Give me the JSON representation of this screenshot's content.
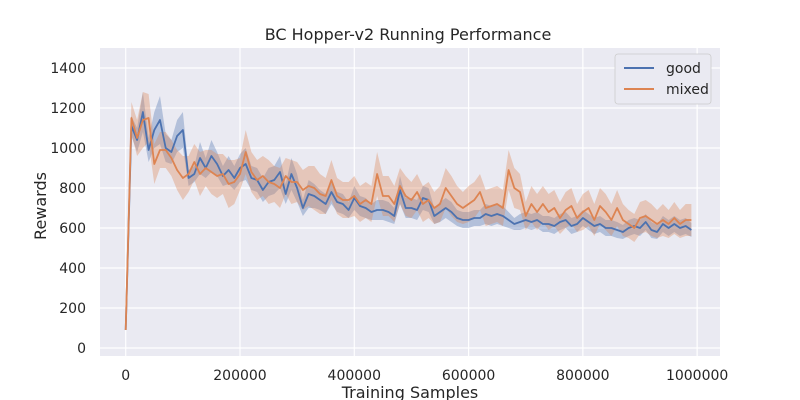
{
  "chart_data": {
    "type": "line",
    "title": "BC Hopper-v2 Running Performance",
    "xlabel": "Training Samples",
    "ylabel": "Rewards",
    "xlim": [
      -45000,
      1040000
    ],
    "ylim": [
      -40,
      1500
    ],
    "xticks": [
      0,
      200000,
      400000,
      600000,
      800000,
      1000000
    ],
    "yticks": [
      0,
      200,
      400,
      600,
      800,
      1000,
      1200,
      1400
    ],
    "grid": true,
    "legend_position": "top-right",
    "background_color": "#eaeaf2",
    "series": [
      {
        "name": "good",
        "color": "#4c72b0",
        "x": [
          0,
          10000,
          20000,
          30000,
          40000,
          50000,
          60000,
          70000,
          80000,
          90000,
          100000,
          110000,
          120000,
          130000,
          140000,
          150000,
          160000,
          170000,
          180000,
          190000,
          200000,
          210000,
          220000,
          230000,
          240000,
          250000,
          260000,
          270000,
          280000,
          290000,
          300000,
          310000,
          320000,
          330000,
          340000,
          350000,
          360000,
          370000,
          380000,
          390000,
          400000,
          410000,
          420000,
          430000,
          440000,
          450000,
          460000,
          470000,
          480000,
          490000,
          500000,
          510000,
          520000,
          530000,
          540000,
          550000,
          560000,
          570000,
          580000,
          590000,
          600000,
          610000,
          620000,
          630000,
          640000,
          650000,
          660000,
          670000,
          680000,
          690000,
          700000,
          710000,
          720000,
          730000,
          740000,
          750000,
          760000,
          770000,
          780000,
          790000,
          800000,
          810000,
          820000,
          830000,
          840000,
          850000,
          860000,
          870000,
          880000,
          890000,
          900000,
          910000,
          920000,
          930000,
          940000,
          950000,
          960000,
          970000,
          980000,
          990000
        ],
        "y": [
          90,
          1110,
          1040,
          1180,
          990,
          1090,
          1140,
          1000,
          980,
          1060,
          1090,
          850,
          870,
          950,
          900,
          960,
          920,
          860,
          890,
          850,
          900,
          920,
          850,
          840,
          790,
          830,
          840,
          880,
          770,
          870,
          800,
          700,
          770,
          760,
          740,
          720,
          780,
          730,
          720,
          690,
          750,
          710,
          700,
          680,
          690,
          690,
          680,
          660,
          790,
          700,
          700,
          690,
          750,
          740,
          660,
          680,
          700,
          680,
          650,
          640,
          640,
          650,
          650,
          670,
          660,
          670,
          660,
          640,
          620,
          630,
          640,
          630,
          640,
          620,
          620,
          610,
          630,
          640,
          610,
          620,
          650,
          630,
          610,
          620,
          600,
          600,
          590,
          580,
          600,
          610,
          600,
          630,
          590,
          580,
          620,
          600,
          620,
          600,
          610,
          590
        ],
        "lower": [
          90,
          1060,
          980,
          1080,
          930,
          1000,
          1020,
          930,
          920,
          980,
          1000,
          810,
          830,
          870,
          850,
          880,
          860,
          810,
          820,
          790,
          830,
          840,
          790,
          780,
          730,
          760,
          770,
          800,
          720,
          790,
          730,
          660,
          700,
          700,
          690,
          670,
          720,
          680,
          670,
          650,
          690,
          660,
          650,
          640,
          640,
          640,
          630,
          620,
          720,
          650,
          650,
          640,
          690,
          680,
          620,
          630,
          650,
          630,
          610,
          600,
          600,
          610,
          610,
          620,
          610,
          620,
          610,
          600,
          590,
          590,
          600,
          590,
          600,
          580,
          580,
          570,
          590,
          600,
          570,
          580,
          610,
          590,
          570,
          580,
          560,
          560,
          550,
          545,
          560,
          570,
          560,
          590,
          550,
          545,
          580,
          560,
          580,
          560,
          570,
          555
        ],
        "upper": [
          90,
          1160,
          1100,
          1280,
          1050,
          1180,
          1260,
          1070,
          1040,
          1140,
          1180,
          890,
          910,
          1030,
          950,
          1040,
          980,
          910,
          960,
          910,
          970,
          1000,
          910,
          900,
          850,
          900,
          910,
          960,
          820,
          950,
          870,
          740,
          840,
          820,
          790,
          770,
          840,
          780,
          770,
          730,
          810,
          760,
          750,
          720,
          740,
          740,
          730,
          700,
          860,
          750,
          750,
          740,
          810,
          800,
          700,
          730,
          750,
          730,
          690,
          680,
          680,
          690,
          690,
          720,
          710,
          720,
          710,
          680,
          650,
          670,
          680,
          670,
          680,
          660,
          660,
          650,
          670,
          680,
          650,
          660,
          690,
          670,
          650,
          660,
          640,
          640,
          630,
          615,
          640,
          650,
          640,
          670,
          630,
          615,
          660,
          640,
          660,
          640,
          650,
          625
        ]
      },
      {
        "name": "mixed",
        "color": "#dd8452",
        "x": [
          0,
          10000,
          20000,
          30000,
          40000,
          50000,
          60000,
          70000,
          80000,
          90000,
          100000,
          110000,
          120000,
          130000,
          140000,
          150000,
          160000,
          170000,
          180000,
          190000,
          200000,
          210000,
          220000,
          230000,
          240000,
          250000,
          260000,
          270000,
          280000,
          290000,
          300000,
          310000,
          320000,
          330000,
          340000,
          350000,
          360000,
          370000,
          380000,
          390000,
          400000,
          410000,
          420000,
          430000,
          440000,
          450000,
          460000,
          470000,
          480000,
          490000,
          500000,
          510000,
          520000,
          530000,
          540000,
          550000,
          560000,
          570000,
          580000,
          590000,
          600000,
          610000,
          620000,
          630000,
          640000,
          650000,
          660000,
          670000,
          680000,
          690000,
          700000,
          710000,
          720000,
          730000,
          740000,
          750000,
          760000,
          770000,
          780000,
          790000,
          800000,
          810000,
          820000,
          830000,
          840000,
          850000,
          860000,
          870000,
          880000,
          890000,
          900000,
          910000,
          920000,
          930000,
          940000,
          950000,
          960000,
          970000,
          980000,
          990000
        ],
        "y": [
          90,
          1150,
          1050,
          1140,
          1150,
          920,
          990,
          990,
          950,
          890,
          850,
          870,
          930,
          870,
          900,
          880,
          860,
          870,
          820,
          830,
          870,
          980,
          880,
          840,
          860,
          830,
          820,
          800,
          860,
          830,
          830,
          790,
          810,
          800,
          770,
          760,
          840,
          760,
          740,
          740,
          760,
          720,
          740,
          720,
          870,
          760,
          760,
          720,
          810,
          760,
          740,
          780,
          720,
          740,
          700,
          720,
          800,
          760,
          720,
          700,
          720,
          740,
          780,
          700,
          710,
          720,
          700,
          890,
          800,
          780,
          660,
          720,
          680,
          720,
          680,
          700,
          650,
          690,
          710,
          650,
          680,
          700,
          640,
          710,
          680,
          640,
          700,
          640,
          620,
          600,
          650,
          660,
          640,
          620,
          640,
          620,
          650,
          620,
          640,
          640
        ],
        "lower": [
          90,
          1070,
          960,
          1000,
          1030,
          820,
          900,
          900,
          860,
          790,
          740,
          780,
          840,
          760,
          810,
          770,
          750,
          770,
          700,
          720,
          790,
          870,
          780,
          740,
          760,
          720,
          730,
          700,
          770,
          720,
          730,
          690,
          710,
          690,
          670,
          670,
          740,
          670,
          650,
          650,
          660,
          630,
          650,
          630,
          760,
          660,
          660,
          630,
          720,
          660,
          650,
          690,
          630,
          650,
          620,
          630,
          700,
          660,
          630,
          620,
          630,
          650,
          690,
          610,
          620,
          630,
          610,
          790,
          700,
          690,
          590,
          630,
          590,
          630,
          590,
          610,
          570,
          600,
          620,
          580,
          590,
          610,
          560,
          620,
          590,
          560,
          610,
          560,
          550,
          530,
          570,
          580,
          560,
          550,
          560,
          550,
          570,
          550,
          560,
          560
        ],
        "upper": [
          90,
          1230,
          1140,
          1280,
          1270,
          1020,
          1080,
          1080,
          1040,
          990,
          960,
          960,
          1020,
          980,
          990,
          990,
          970,
          970,
          940,
          940,
          950,
          1090,
          980,
          940,
          960,
          940,
          910,
          900,
          950,
          940,
          930,
          890,
          910,
          910,
          870,
          850,
          940,
          850,
          830,
          830,
          860,
          810,
          830,
          810,
          980,
          860,
          860,
          810,
          900,
          860,
          830,
          870,
          810,
          830,
          780,
          810,
          900,
          860,
          810,
          780,
          810,
          830,
          870,
          790,
          800,
          810,
          790,
          990,
          900,
          870,
          730,
          810,
          770,
          810,
          770,
          790,
          730,
          780,
          800,
          720,
          770,
          790,
          720,
          800,
          770,
          720,
          790,
          720,
          690,
          670,
          730,
          740,
          720,
          690,
          720,
          690,
          730,
          690,
          720,
          720
        ]
      }
    ]
  }
}
